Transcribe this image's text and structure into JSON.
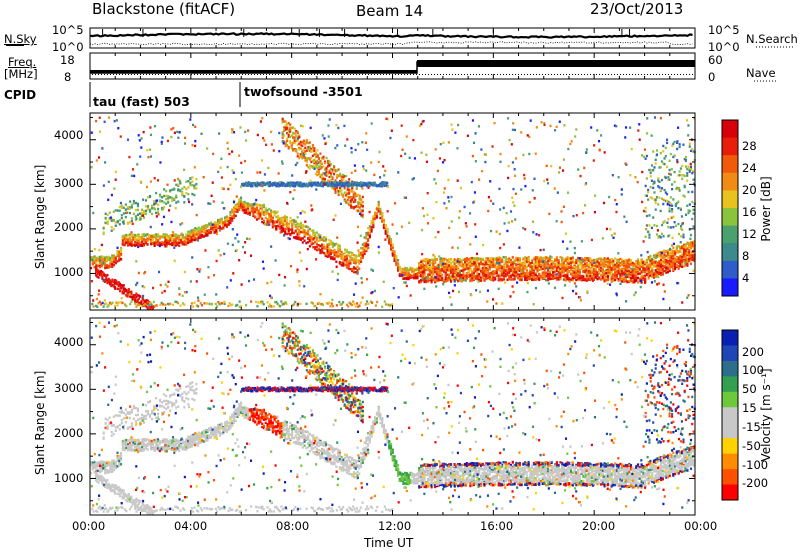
{
  "header": {
    "station": "Blackstone (fitACF)",
    "beam": "Beam 14",
    "date": "23/Oct/2013"
  },
  "noise_panel": {
    "left_label": "N.Sky",
    "right_label": "N.Search",
    "left_ticks": [
      "10^5",
      "10^0"
    ],
    "right_ticks": [
      "10^5",
      "10^0"
    ]
  },
  "freq_panel": {
    "left_label_1": "Freq.",
    "left_label_2": "[MHz]",
    "right_label": "Nave",
    "left_ticks": [
      "18",
      "8"
    ],
    "right_ticks": [
      "60",
      "0"
    ]
  },
  "cpid": {
    "label": "CPID",
    "segments": [
      "tau (fast) 503",
      "twofsound -3501"
    ]
  },
  "chart_data": [
    {
      "type": "heatmap",
      "parameter": "power",
      "ylabel": "Slant Range [km]",
      "yticks": [
        "4000",
        "3000",
        "2000",
        "1000"
      ],
      "ylim": [
        180,
        4600
      ],
      "colorbar_label": "Power [dB]",
      "colorbar_ticks": [
        "28",
        "24",
        "20",
        "16",
        "12",
        "8",
        "4"
      ],
      "colorbar_colors": [
        "#1a1aff",
        "#2f5cc8",
        "#3c8a8c",
        "#4aa06e",
        "#8cc33c",
        "#e8c21e",
        "#f08c14",
        "#f05a0a",
        "#e81e0a",
        "#d8000a"
      ]
    },
    {
      "type": "heatmap",
      "parameter": "velocity",
      "ylabel": "Slant Range [km]",
      "yticks": [
        "4000",
        "3000",
        "2000",
        "1000"
      ],
      "ylim": [
        180,
        4600
      ],
      "colorbar_label": "Velocity [m s⁻¹]",
      "colorbar_ticks": [
        "200",
        "100",
        "50",
        "15",
        "-15",
        "-50",
        "-100",
        "-200"
      ],
      "colorbar_colors": [
        "#ff0000",
        "#ff5000",
        "#ff8c00",
        "#ffd200",
        "#c8c8c8",
        "#c8c8c8",
        "#6ec83c",
        "#32a050",
        "#2c6e8c",
        "#1e46b4",
        "#0a1eb4"
      ]
    }
  ],
  "x_axis": {
    "xlabel": "Time UT",
    "ticks": [
      "00:00",
      "04:00",
      "08:00",
      "12:00",
      "16:00",
      "20:00",
      "00:00"
    ]
  }
}
